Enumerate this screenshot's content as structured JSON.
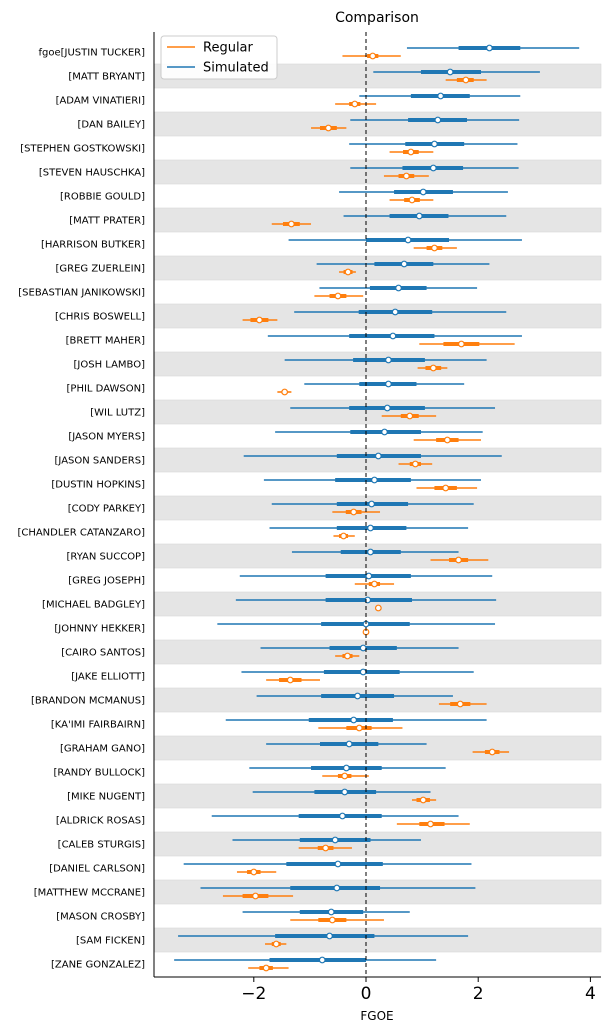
{
  "chart_data": {
    "type": "forest",
    "title": "Comparison",
    "xlabel": "FGOE",
    "ylabel": "",
    "xlim": [
      -3.8,
      4.15
    ],
    "x_ticks": [
      -2,
      0,
      2,
      4
    ],
    "x_tick_labels": [
      "−2",
      "0",
      "2",
      "4"
    ],
    "reference_line_x": 0,
    "grid": false,
    "alternating_row_bands": true,
    "legend": {
      "placement": "top-left",
      "entries": [
        "Regular",
        "Simulated"
      ]
    },
    "series_colors": {
      "Regular": "#ff7f0e",
      "Simulated": "#1f77b4"
    },
    "rows": [
      {
        "label": "fgoe[JUSTIN TUCKER]",
        "simulated": {
          "mean": 2.2,
          "hdi50": [
            1.65,
            2.75
          ],
          "hdi94": [
            0.73,
            3.8
          ]
        },
        "regular": {
          "mean": 0.12,
          "hdi50": [
            0.02,
            0.22
          ],
          "hdi94": [
            -0.42,
            0.62
          ]
        }
      },
      {
        "label": "[MATT BRYANT]",
        "simulated": {
          "mean": 1.5,
          "hdi50": [
            0.98,
            2.05
          ],
          "hdi94": [
            0.13,
            3.1
          ]
        },
        "regular": {
          "mean": 1.78,
          "hdi50": [
            1.62,
            1.92
          ],
          "hdi94": [
            1.42,
            2.15
          ]
        }
      },
      {
        "label": "[ADAM VINATIERI]",
        "simulated": {
          "mean": 1.33,
          "hdi50": [
            0.8,
            1.85
          ],
          "hdi94": [
            -0.12,
            2.75
          ]
        },
        "regular": {
          "mean": -0.2,
          "hdi50": [
            -0.3,
            -0.1
          ],
          "hdi94": [
            -0.55,
            0.18
          ]
        }
      },
      {
        "label": "[DAN BAILEY]",
        "simulated": {
          "mean": 1.28,
          "hdi50": [
            0.75,
            1.8
          ],
          "hdi94": [
            -0.28,
            2.73
          ]
        },
        "regular": {
          "mean": -0.67,
          "hdi50": [
            -0.82,
            -0.52
          ],
          "hdi94": [
            -0.98,
            -0.35
          ]
        }
      },
      {
        "label": "[STEPHEN GOSTKOWSKI]",
        "simulated": {
          "mean": 1.22,
          "hdi50": [
            0.7,
            1.75
          ],
          "hdi94": [
            -0.3,
            2.7
          ]
        },
        "regular": {
          "mean": 0.8,
          "hdi50": [
            0.66,
            0.94
          ],
          "hdi94": [
            0.42,
            1.2
          ]
        }
      },
      {
        "label": "[STEVEN HAUSCHKA]",
        "simulated": {
          "mean": 1.2,
          "hdi50": [
            0.65,
            1.73
          ],
          "hdi94": [
            -0.28,
            2.72
          ]
        },
        "regular": {
          "mean": 0.72,
          "hdi50": [
            0.58,
            0.86
          ],
          "hdi94": [
            0.32,
            1.12
          ]
        }
      },
      {
        "label": "[ROBBIE GOULD]",
        "simulated": {
          "mean": 1.02,
          "hdi50": [
            0.5,
            1.55
          ],
          "hdi94": [
            -0.48,
            2.53
          ]
        },
        "regular": {
          "mean": 0.82,
          "hdi50": [
            0.68,
            0.96
          ],
          "hdi94": [
            0.42,
            1.2
          ]
        }
      },
      {
        "label": "[MATT PRATER]",
        "simulated": {
          "mean": 0.95,
          "hdi50": [
            0.42,
            1.47
          ],
          "hdi94": [
            -0.4,
            2.5
          ]
        },
        "regular": {
          "mean": -1.33,
          "hdi50": [
            -1.48,
            -1.18
          ],
          "hdi94": [
            -1.68,
            -0.98
          ]
        }
      },
      {
        "label": "[HARRISON BUTKER]",
        "simulated": {
          "mean": 0.75,
          "hdi50": [
            0.0,
            1.48
          ],
          "hdi94": [
            -1.38,
            2.78
          ]
        },
        "regular": {
          "mean": 1.22,
          "hdi50": [
            1.08,
            1.36
          ],
          "hdi94": [
            0.85,
            1.62
          ]
        }
      },
      {
        "label": "[GREG ZUERLEIN]",
        "simulated": {
          "mean": 0.68,
          "hdi50": [
            0.15,
            1.2
          ],
          "hdi94": [
            -0.88,
            2.2
          ]
        },
        "regular": {
          "mean": -0.32,
          "hdi50": [
            -0.4,
            -0.24
          ],
          "hdi94": [
            -0.48,
            -0.18
          ]
        }
      },
      {
        "label": "[SEBASTIAN JANIKOWSKI]",
        "simulated": {
          "mean": 0.58,
          "hdi50": [
            0.07,
            1.08
          ],
          "hdi94": [
            -0.83,
            1.98
          ]
        },
        "regular": {
          "mean": -0.5,
          "hdi50": [
            -0.65,
            -0.35
          ],
          "hdi94": [
            -0.92,
            -0.05
          ]
        }
      },
      {
        "label": "[CHRIS BOSWELL]",
        "simulated": {
          "mean": 0.52,
          "hdi50": [
            -0.13,
            1.18
          ],
          "hdi94": [
            -1.28,
            2.5
          ]
        },
        "regular": {
          "mean": -1.9,
          "hdi50": [
            -2.06,
            -1.74
          ],
          "hdi94": [
            -2.2,
            -1.58
          ]
        }
      },
      {
        "label": "[BRETT MAHER]",
        "simulated": {
          "mean": 0.48,
          "hdi50": [
            -0.3,
            1.22
          ],
          "hdi94": [
            -1.75,
            2.78
          ]
        },
        "regular": {
          "mean": 1.7,
          "hdi50": [
            1.38,
            2.02
          ],
          "hdi94": [
            0.95,
            2.65
          ]
        }
      },
      {
        "label": "[JOSH LAMBO]",
        "simulated": {
          "mean": 0.4,
          "hdi50": [
            -0.23,
            1.05
          ],
          "hdi94": [
            -1.45,
            2.15
          ]
        },
        "regular": {
          "mean": 1.2,
          "hdi50": [
            1.06,
            1.34
          ],
          "hdi94": [
            0.92,
            1.45
          ]
        }
      },
      {
        "label": "[PHIL DAWSON]",
        "simulated": {
          "mean": 0.4,
          "hdi50": [
            -0.12,
            0.9
          ],
          "hdi94": [
            -1.1,
            1.75
          ]
        },
        "regular": {
          "mean": -1.45,
          "hdi50": [
            -1.5,
            -1.4
          ],
          "hdi94": [
            -1.58,
            -1.33
          ]
        }
      },
      {
        "label": "[WIL LUTZ]",
        "simulated": {
          "mean": 0.38,
          "hdi50": [
            -0.3,
            1.05
          ],
          "hdi94": [
            -1.35,
            2.3
          ]
        },
        "regular": {
          "mean": 0.78,
          "hdi50": [
            0.62,
            0.94
          ],
          "hdi94": [
            0.28,
            1.25
          ]
        }
      },
      {
        "label": "[JASON MYERS]",
        "simulated": {
          "mean": 0.33,
          "hdi50": [
            -0.28,
            0.98
          ],
          "hdi94": [
            -1.62,
            2.08
          ]
        },
        "regular": {
          "mean": 1.45,
          "hdi50": [
            1.25,
            1.65
          ],
          "hdi94": [
            0.85,
            2.05
          ]
        }
      },
      {
        "label": "[JASON SANDERS]",
        "simulated": {
          "mean": 0.22,
          "hdi50": [
            -0.52,
            0.98
          ],
          "hdi94": [
            -2.18,
            2.42
          ]
        },
        "regular": {
          "mean": 0.88,
          "hdi50": [
            0.78,
            0.98
          ],
          "hdi94": [
            0.58,
            1.18
          ]
        }
      },
      {
        "label": "[DUSTIN HOPKINS]",
        "simulated": {
          "mean": 0.15,
          "hdi50": [
            -0.55,
            0.8
          ],
          "hdi94": [
            -1.82,
            2.05
          ]
        },
        "regular": {
          "mean": 1.42,
          "hdi50": [
            1.22,
            1.62
          ],
          "hdi94": [
            0.9,
            1.98
          ]
        }
      },
      {
        "label": "[CODY PARKEY]",
        "simulated": {
          "mean": 0.1,
          "hdi50": [
            -0.52,
            0.75
          ],
          "hdi94": [
            -1.68,
            1.92
          ]
        },
        "regular": {
          "mean": -0.22,
          "hdi50": [
            -0.36,
            -0.08
          ],
          "hdi94": [
            -0.6,
            0.25
          ]
        }
      },
      {
        "label": "[CHANDLER CATANZARO]",
        "simulated": {
          "mean": 0.08,
          "hdi50": [
            -0.52,
            0.72
          ],
          "hdi94": [
            -1.72,
            1.82
          ]
        },
        "regular": {
          "mean": -0.4,
          "hdi50": [
            -0.48,
            -0.32
          ],
          "hdi94": [
            -0.58,
            -0.2
          ]
        }
      },
      {
        "label": "[RYAN SUCCOP]",
        "simulated": {
          "mean": 0.08,
          "hdi50": [
            -0.45,
            0.62
          ],
          "hdi94": [
            -1.32,
            1.65
          ]
        },
        "regular": {
          "mean": 1.65,
          "hdi50": [
            1.48,
            1.82
          ],
          "hdi94": [
            1.15,
            2.18
          ]
        }
      },
      {
        "label": "[GREG JOSEPH]",
        "simulated": {
          "mean": 0.05,
          "hdi50": [
            -0.72,
            0.8
          ],
          "hdi94": [
            -2.25,
            2.25
          ]
        },
        "regular": {
          "mean": 0.15,
          "hdi50": [
            0.05,
            0.25
          ],
          "hdi94": [
            -0.2,
            0.5
          ]
        }
      },
      {
        "label": "[MICHAEL BADGLEY]",
        "simulated": {
          "mean": 0.03,
          "hdi50": [
            -0.72,
            0.82
          ],
          "hdi94": [
            -2.32,
            2.32
          ]
        },
        "regular": {
          "mean": 0.22,
          "hdi50": [
            0.2,
            0.24
          ],
          "hdi94": [
            0.18,
            0.26
          ]
        }
      },
      {
        "label": "[JOHNNY HEKKER]",
        "simulated": {
          "mean": 0.0,
          "hdi50": [
            -0.8,
            0.78
          ],
          "hdi94": [
            -2.65,
            2.3
          ]
        },
        "regular": {
          "mean": 0.0,
          "hdi50": [
            -0.02,
            0.02
          ],
          "hdi94": [
            -0.04,
            0.04
          ]
        }
      },
      {
        "label": "[CAIRO SANTOS]",
        "simulated": {
          "mean": -0.05,
          "hdi50": [
            -0.65,
            0.55
          ],
          "hdi94": [
            -1.88,
            1.65
          ]
        },
        "regular": {
          "mean": -0.33,
          "hdi50": [
            -0.42,
            -0.24
          ],
          "hdi94": [
            -0.55,
            -0.12
          ]
        }
      },
      {
        "label": "[JAKE ELLIOTT]",
        "simulated": {
          "mean": -0.05,
          "hdi50": [
            -0.75,
            0.6
          ],
          "hdi94": [
            -2.22,
            1.92
          ]
        },
        "regular": {
          "mean": -1.35,
          "hdi50": [
            -1.55,
            -1.15
          ],
          "hdi94": [
            -1.78,
            -0.82
          ]
        }
      },
      {
        "label": "[BRANDON MCMANUS]",
        "simulated": {
          "mean": -0.15,
          "hdi50": [
            -0.8,
            0.5
          ],
          "hdi94": [
            -1.95,
            1.55
          ]
        },
        "regular": {
          "mean": 1.68,
          "hdi50": [
            1.5,
            1.86
          ],
          "hdi94": [
            1.3,
            2.15
          ]
        }
      },
      {
        "label": "[KA'IMI FAIRBAIRN]",
        "simulated": {
          "mean": -0.22,
          "hdi50": [
            -1.02,
            0.48
          ],
          "hdi94": [
            -2.5,
            2.15
          ]
        },
        "regular": {
          "mean": -0.12,
          "hdi50": [
            -0.35,
            0.1
          ],
          "hdi94": [
            -0.85,
            0.65
          ]
        }
      },
      {
        "label": "[GRAHAM GANO]",
        "simulated": {
          "mean": -0.3,
          "hdi50": [
            -0.82,
            0.22
          ],
          "hdi94": [
            -1.78,
            1.08
          ]
        },
        "regular": {
          "mean": 2.25,
          "hdi50": [
            2.12,
            2.38
          ],
          "hdi94": [
            1.9,
            2.55
          ]
        }
      },
      {
        "label": "[RANDY BULLOCK]",
        "simulated": {
          "mean": -0.35,
          "hdi50": [
            -0.98,
            0.28
          ],
          "hdi94": [
            -2.08,
            1.42
          ]
        },
        "regular": {
          "mean": -0.38,
          "hdi50": [
            -0.5,
            -0.26
          ],
          "hdi94": [
            -0.78,
            0.05
          ]
        }
      },
      {
        "label": "[MIKE NUGENT]",
        "simulated": {
          "mean": -0.38,
          "hdi50": [
            -0.92,
            0.18
          ],
          "hdi94": [
            -2.02,
            1.15
          ]
        },
        "regular": {
          "mean": 1.02,
          "hdi50": [
            0.9,
            1.14
          ],
          "hdi94": [
            0.82,
            1.25
          ]
        }
      },
      {
        "label": "[ALDRICK ROSAS]",
        "simulated": {
          "mean": -0.42,
          "hdi50": [
            -1.2,
            0.28
          ],
          "hdi94": [
            -2.75,
            1.65
          ]
        },
        "regular": {
          "mean": 1.15,
          "hdi50": [
            0.95,
            1.4
          ],
          "hdi94": [
            0.55,
            1.85
          ]
        }
      },
      {
        "label": "[CALEB STURGIS]",
        "simulated": {
          "mean": -0.55,
          "hdi50": [
            -1.18,
            0.08
          ],
          "hdi94": [
            -2.38,
            0.98
          ]
        },
        "regular": {
          "mean": -0.72,
          "hdi50": [
            -0.86,
            -0.58
          ],
          "hdi94": [
            -1.2,
            -0.25
          ]
        }
      },
      {
        "label": "[DANIEL CARLSON]",
        "simulated": {
          "mean": -0.5,
          "hdi50": [
            -1.42,
            0.3
          ],
          "hdi94": [
            -3.25,
            1.88
          ]
        },
        "regular": {
          "mean": -2.0,
          "hdi50": [
            -2.12,
            -1.88
          ],
          "hdi94": [
            -2.3,
            -1.6
          ]
        }
      },
      {
        "label": "[MATTHEW MCCRANE]",
        "simulated": {
          "mean": -0.52,
          "hdi50": [
            -1.35,
            0.25
          ],
          "hdi94": [
            -2.95,
            1.95
          ]
        },
        "regular": {
          "mean": -1.97,
          "hdi50": [
            -2.2,
            -1.74
          ],
          "hdi94": [
            -2.55,
            -1.3
          ]
        }
      },
      {
        "label": "[MASON CROSBY]",
        "simulated": {
          "mean": -0.62,
          "hdi50": [
            -1.18,
            -0.05
          ],
          "hdi94": [
            -2.2,
            0.78
          ]
        },
        "regular": {
          "mean": -0.6,
          "hdi50": [
            -0.85,
            -0.35
          ],
          "hdi94": [
            -1.35,
            0.32
          ]
        }
      },
      {
        "label": "[SAM FICKEN]",
        "simulated": {
          "mean": -0.65,
          "hdi50": [
            -1.62,
            0.15
          ],
          "hdi94": [
            -3.35,
            1.82
          ]
        },
        "regular": {
          "mean": -1.6,
          "hdi50": [
            -1.68,
            -1.52
          ],
          "hdi94": [
            -1.8,
            -1.42
          ]
        }
      },
      {
        "label": "[ZANE GONZALEZ]",
        "simulated": {
          "mean": -0.78,
          "hdi50": [
            -1.72,
            0.0
          ],
          "hdi94": [
            -3.42,
            1.25
          ]
        },
        "regular": {
          "mean": -1.78,
          "hdi50": [
            -1.9,
            -1.66
          ],
          "hdi94": [
            -2.1,
            -1.38
          ]
        }
      }
    ]
  }
}
